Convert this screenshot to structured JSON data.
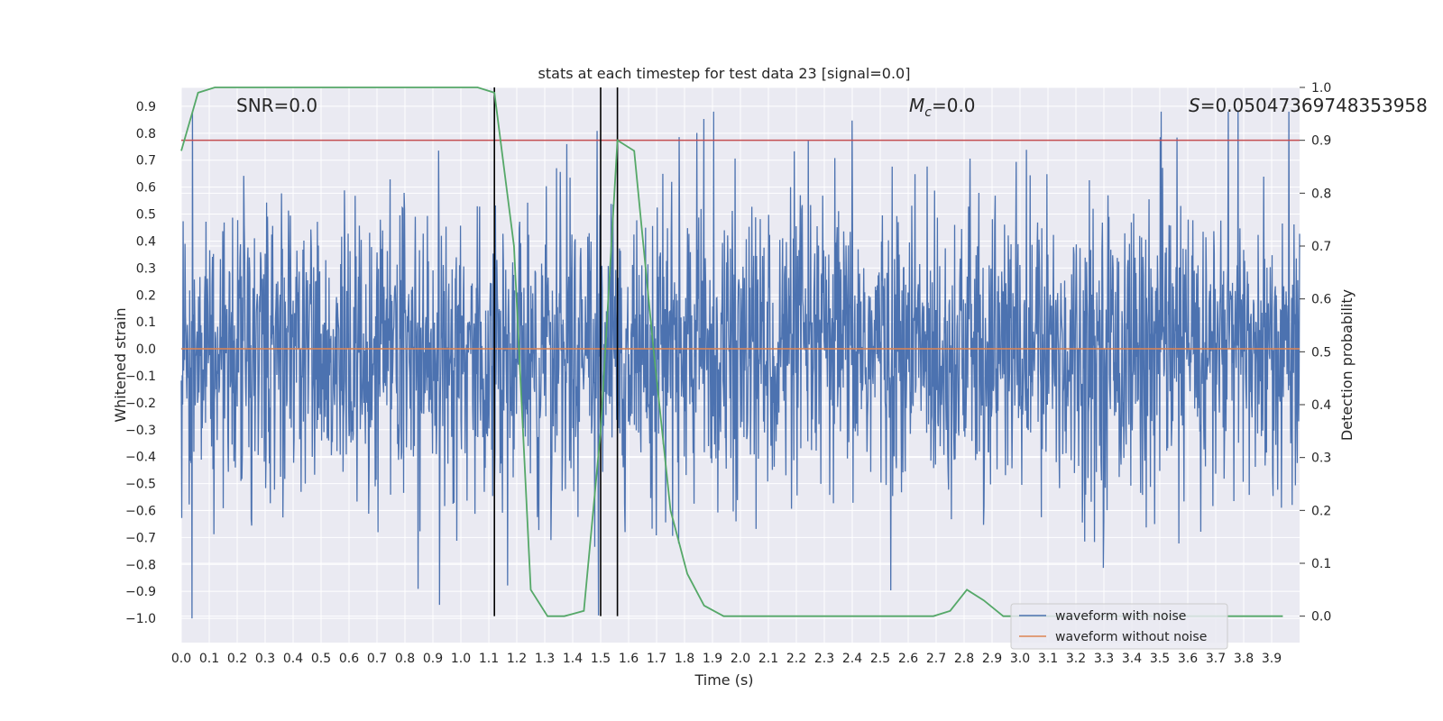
{
  "chart_data": {
    "type": "line",
    "title": "stats at each timestep for test data 23 [signal=0.0]",
    "xlabel": "Time (s)",
    "ylabel_left": "Whitened strain",
    "ylabel_right": "Detection probability",
    "xlim": [
      0.0,
      4.0
    ],
    "ylim_left": [
      -1.09,
      0.97
    ],
    "ylim_right": [
      -0.05,
      1.0
    ],
    "x_ticks": [
      "0.0",
      "0.1",
      "0.2",
      "0.3",
      "0.4",
      "0.5",
      "0.6",
      "0.7",
      "0.8",
      "0.9",
      "1.0",
      "1.1",
      "1.2",
      "1.3",
      "1.4",
      "1.5",
      "1.6",
      "1.7",
      "1.8",
      "1.9",
      "2.0",
      "2.1",
      "2.2",
      "2.3",
      "2.4",
      "2.5",
      "2.6",
      "2.7",
      "2.8",
      "2.9",
      "3.0",
      "3.1",
      "3.2",
      "3.3",
      "3.4",
      "3.5",
      "3.6",
      "3.7",
      "3.8",
      "3.9"
    ],
    "y_ticks_left": [
      "0.9",
      "0.8",
      "0.7",
      "0.6",
      "0.5",
      "0.4",
      "0.3",
      "0.2",
      "0.1",
      "0.0",
      "−0.1",
      "−0.2",
      "−0.3",
      "−0.4",
      "−0.5",
      "−0.6",
      "−0.7",
      "−0.8",
      "−0.9",
      "−1.0"
    ],
    "y_ticks_right": [
      "1.0",
      "0.9",
      "0.8",
      "0.7",
      "0.6",
      "0.5",
      "0.4",
      "0.3",
      "0.2",
      "0.1",
      "0.0"
    ],
    "annotations": {
      "snr": "SNR=0.0",
      "mc_symbol": "M",
      "mc_sub": "c",
      "mc_value": "=0.0",
      "s_symbol": "S",
      "s_value": "=0.05047369748353958"
    },
    "threshold": 0.9,
    "vlines": [
      1.12,
      1.5,
      1.56
    ],
    "noise_series": {
      "name": "waveform with noise",
      "x_range": [
        0.0,
        4.0
      ],
      "amplitude_range": [
        -1.0,
        0.88
      ]
    },
    "clean_series": {
      "name": "waveform without noise",
      "value": 0.0
    },
    "probability_series": {
      "x": [
        0.0,
        0.06,
        0.12,
        0.19,
        0.25,
        0.31,
        0.37,
        0.44,
        0.5,
        0.56,
        0.62,
        0.69,
        0.75,
        0.81,
        0.87,
        0.94,
        1.0,
        1.06,
        1.12,
        1.19,
        1.25,
        1.31,
        1.37,
        1.44,
        1.5,
        1.56,
        1.62,
        1.69,
        1.75,
        1.81,
        1.87,
        1.94,
        2.0,
        2.06,
        2.12,
        2.19,
        2.25,
        2.31,
        2.37,
        2.44,
        2.5,
        2.56,
        2.62,
        2.69,
        2.75,
        2.81,
        2.87,
        2.94,
        3.0,
        3.06,
        3.12,
        3.19,
        3.25,
        3.31,
        3.37,
        3.44,
        3.5,
        3.56,
        3.62,
        3.69,
        3.75,
        3.81,
        3.87,
        3.94
      ],
      "y": [
        0.88,
        0.99,
        1.0,
        1.0,
        1.0,
        1.0,
        1.0,
        1.0,
        1.0,
        1.0,
        1.0,
        1.0,
        1.0,
        1.0,
        1.0,
        1.0,
        1.0,
        1.0,
        0.99,
        0.7,
        0.05,
        0.0,
        0.0,
        0.01,
        0.35,
        0.9,
        0.88,
        0.5,
        0.2,
        0.08,
        0.02,
        0.0,
        0.0,
        0.0,
        0.0,
        0.0,
        0.0,
        0.0,
        0.0,
        0.0,
        0.0,
        0.0,
        0.0,
        0.0,
        0.01,
        0.05,
        0.03,
        0.0,
        0.0,
        0.0,
        0.0,
        0.0,
        0.0,
        0.0,
        0.0,
        0.0,
        0.0,
        0.0,
        0.0,
        0.0,
        0.0,
        0.0,
        0.0,
        0.0
      ]
    },
    "legend": {
      "position": "lower right",
      "entries": [
        "waveform with noise",
        "waveform without noise"
      ]
    },
    "colors": {
      "noise": "#4c72b0",
      "clean": "#dd8452",
      "probability": "#55a868",
      "threshold": "#c44e52",
      "vline": "#000000",
      "plot_bg": "#eaeaf2",
      "grid": "#ffffff"
    }
  }
}
